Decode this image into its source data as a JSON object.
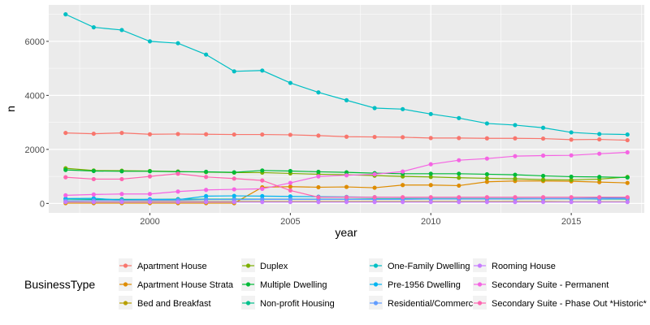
{
  "chart_data": {
    "type": "line",
    "xlabel": "year",
    "ylabel": "n",
    "xlim": [
      1996.4,
      2017.6
    ],
    "ylim": [
      -350,
      7350
    ],
    "x_ticks": [
      2000,
      2005,
      2010,
      2015
    ],
    "y_ticks": [
      0,
      2000,
      4000,
      6000
    ],
    "grid": true,
    "legend": {
      "title": "BusinessType",
      "placement": "bottom",
      "columns": [
        [
          "Apartment House",
          "Apartment House Strata",
          "Bed and Breakfast"
        ],
        [
          "Duplex",
          "Multiple Dwelling",
          "Non-profit Housing"
        ],
        [
          "One-Family Dwelling",
          "Pre-1956 Dwelling",
          "Residential/Commercial"
        ],
        [
          "Rooming House",
          "Secondary Suite - Permanent",
          "Secondary Suite - Phase Out *Historic*"
        ]
      ]
    },
    "x": [
      1997,
      1998,
      1999,
      2000,
      2001,
      2002,
      2003,
      2004,
      2005,
      2006,
      2007,
      2008,
      2009,
      2010,
      2011,
      2012,
      2013,
      2014,
      2015,
      2016,
      2017
    ],
    "series": [
      {
        "name": "Apartment House",
        "color": "#F8766D",
        "values": [
          2610,
          2580,
          2610,
          2560,
          2570,
          2560,
          2550,
          2550,
          2540,
          2510,
          2470,
          2460,
          2450,
          2420,
          2420,
          2410,
          2410,
          2400,
          2360,
          2370,
          2340
        ]
      },
      {
        "name": "Apartment House Strata",
        "color": "#DE8C00",
        "values": [
          10,
          10,
          10,
          10,
          10,
          10,
          10,
          600,
          620,
          600,
          610,
          580,
          680,
          680,
          660,
          800,
          830,
          830,
          820,
          790,
          760
        ]
      },
      {
        "name": "Bed and Breakfast",
        "color": "#B79F00",
        "values": [
          60,
          60,
          60,
          70,
          70,
          70,
          70,
          70,
          70,
          70,
          70,
          70,
          70,
          70,
          70,
          70,
          70,
          70,
          60,
          60,
          60
        ]
      },
      {
        "name": "Duplex",
        "color": "#7CAE00",
        "values": [
          1300,
          1220,
          1210,
          1200,
          1180,
          1160,
          1140,
          1140,
          1110,
          1080,
          1060,
          1030,
          1000,
          980,
          950,
          930,
          910,
          880,
          870,
          900,
          980
        ]
      },
      {
        "name": "Multiple Dwelling",
        "color": "#00BA38",
        "values": [
          1240,
          1200,
          1190,
          1190,
          1170,
          1170,
          1150,
          1220,
          1200,
          1170,
          1150,
          1120,
          1100,
          1100,
          1100,
          1080,
          1060,
          1020,
          990,
          980,
          960
        ]
      },
      {
        "name": "Non-profit Housing",
        "color": "#00C08B",
        "values": [
          160,
          150,
          150,
          150,
          160,
          160,
          160,
          160,
          160,
          160,
          160,
          170,
          170,
          170,
          170,
          170,
          170,
          170,
          170,
          160,
          160
        ]
      },
      {
        "name": "One-Family Dwelling",
        "color": "#00BFC4",
        "values": [
          7000,
          6520,
          6420,
          6000,
          5930,
          5510,
          4890,
          4920,
          4460,
          4110,
          3820,
          3530,
          3490,
          3310,
          3160,
          2960,
          2900,
          2800,
          2630,
          2570,
          2550
        ]
      },
      {
        "name": "Pre-1956 Dwelling",
        "color": "#00B4F0",
        "values": [
          180,
          190,
          120,
          150,
          140,
          270,
          280,
          270,
          260,
          250,
          240,
          230,
          220,
          220,
          220,
          220,
          220,
          220,
          220,
          210,
          210
        ]
      },
      {
        "name": "Residential/Commercial",
        "color": "#619CFF",
        "values": [
          100,
          110,
          110,
          120,
          120,
          140,
          140,
          150,
          150,
          150,
          150,
          150,
          150,
          160,
          160,
          160,
          160,
          170,
          170,
          170,
          180
        ]
      },
      {
        "name": "Rooming House",
        "color": "#C77CFF",
        "values": [
          50,
          50,
          50,
          50,
          50,
          50,
          50,
          50,
          50,
          50,
          50,
          50,
          50,
          50,
          50,
          50,
          50,
          50,
          50,
          50,
          50
        ]
      },
      {
        "name": "Secondary Suite - Permanent",
        "color": "#F564E3",
        "values": [
          300,
          330,
          350,
          350,
          440,
          500,
          520,
          540,
          760,
          1000,
          1040,
          1080,
          1180,
          1450,
          1600,
          1660,
          1750,
          1770,
          1780,
          1840,
          1890
        ]
      },
      {
        "name": "Secondary Suite - Phase Out *Historic*",
        "color": "#FF64B0",
        "values": [
          970,
          900,
          900,
          1000,
          1100,
          980,
          920,
          850,
          480,
          230,
          230,
          230,
          230,
          230,
          230,
          230,
          230,
          230,
          230,
          230,
          230
        ]
      }
    ]
  }
}
